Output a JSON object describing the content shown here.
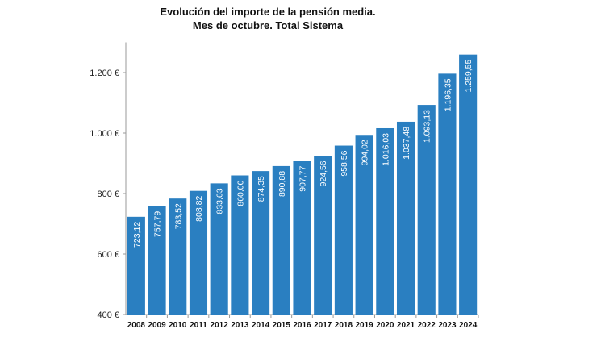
{
  "chart_data": {
    "type": "bar",
    "title_line1": "Evolución del importe de la pensión media.",
    "title_line2": "Mes de octubre. Total Sistema",
    "xlabel": "",
    "ylabel": "",
    "ylim": [
      400,
      1300
    ],
    "yticks": [
      400,
      600,
      800,
      1000,
      1200
    ],
    "ytick_labels": [
      "400 €",
      "600 €",
      "800 €",
      "1.000 €",
      "1.200 €"
    ],
    "grid": false,
    "bar_color": "#2a7fc1",
    "categories": [
      "2008",
      "2009",
      "2010",
      "2011",
      "2012",
      "2013",
      "2014",
      "2015",
      "2016",
      "2017",
      "2018",
      "2019",
      "2020",
      "2021",
      "2022",
      "2023",
      "2024"
    ],
    "values": [
      723.12,
      757.79,
      783.52,
      808.82,
      833.63,
      860.0,
      874.35,
      890.88,
      907.77,
      924.56,
      958.56,
      994.02,
      1016.03,
      1037.48,
      1093.13,
      1196.35,
      1259.55
    ],
    "data_labels": [
      "723,12",
      "757,79",
      "783,52",
      "808,82",
      "833,63",
      "860,00",
      "874,35",
      "890,88",
      "907,77",
      "924,56",
      "958,56",
      "994,02",
      "1.016,03",
      "1.037,48",
      "1.093,13",
      "1.196,35",
      "1.259,55"
    ]
  }
}
